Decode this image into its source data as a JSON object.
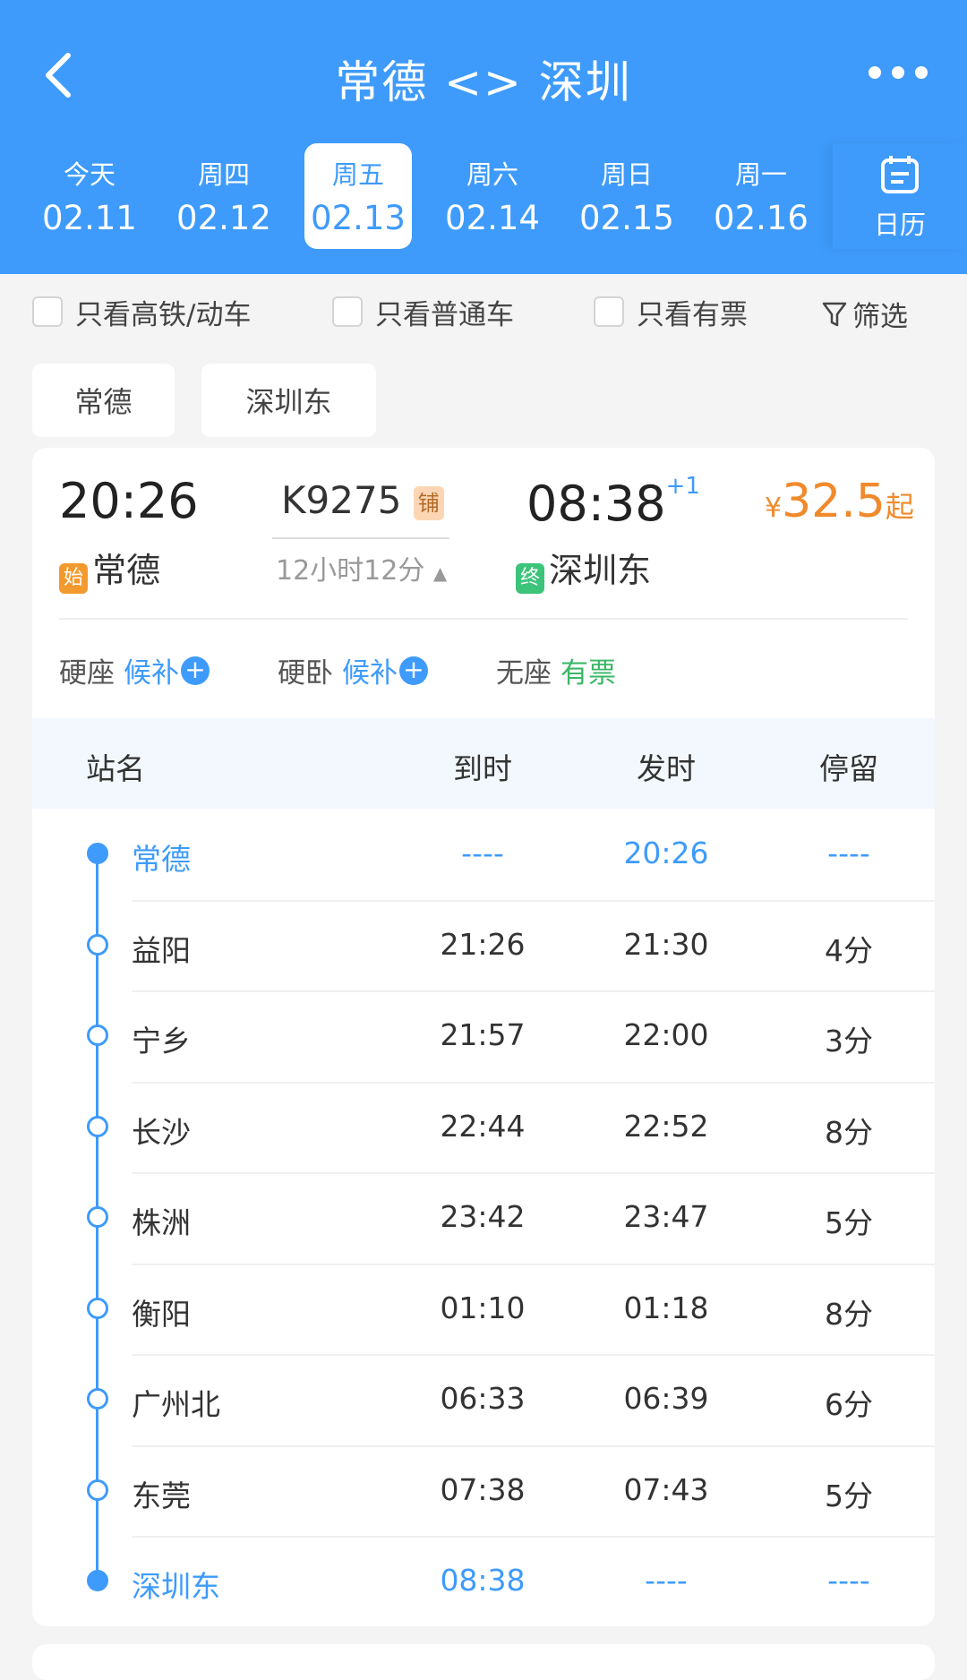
{
  "header": {
    "title": "常德 <> 深圳",
    "back_icon": "chevron-left-icon",
    "more_icon": "more-dots-icon"
  },
  "dates": [
    {
      "weekday": "今天",
      "date": "02.11",
      "selected": false
    },
    {
      "weekday": "周四",
      "date": "02.12",
      "selected": false
    },
    {
      "weekday": "周五",
      "date": "02.13",
      "selected": true
    },
    {
      "weekday": "周六",
      "date": "02.14",
      "selected": false
    },
    {
      "weekday": "周日",
      "date": "02.15",
      "selected": false
    },
    {
      "weekday": "周一",
      "date": "02.16",
      "selected": false
    }
  ],
  "calendar_label": "日历",
  "filters": {
    "high_speed": "只看高铁/动车",
    "normal": "只看普通车",
    "available": "只看有票",
    "filter": "筛选"
  },
  "station_chips": [
    "常德",
    "深圳东"
  ],
  "train": {
    "depart_time": "20:26",
    "number": "K9275",
    "type_badge": "铺",
    "arrive_time": "08:38",
    "day_offset": "+1",
    "price_symbol": "¥",
    "price": "32.5",
    "price_suffix": "起",
    "start_badge": "始",
    "from": "常德",
    "duration": "12小时12分",
    "end_badge": "终",
    "to": "深圳东",
    "seats": [
      {
        "name": "硬座",
        "status": "候补",
        "color": "#3e9bfb"
      },
      {
        "name": "硬卧",
        "status": "候补",
        "color": "#3e9bfb"
      },
      {
        "name": "无座",
        "status": "有票",
        "color": "#3bb766"
      }
    ]
  },
  "table": {
    "headers": [
      "站名",
      "到时",
      "发时",
      "停留"
    ],
    "rows": [
      [
        "常德",
        "----",
        "20:26",
        "----"
      ],
      [
        "益阳",
        "21:26",
        "21:30",
        "4分"
      ],
      [
        "宁乡",
        "21:57",
        "22:00",
        "3分"
      ],
      [
        "长沙",
        "22:44",
        "22:52",
        "8分"
      ],
      [
        "株洲",
        "23:42",
        "23:47",
        "5分"
      ],
      [
        "衡阳",
        "01:10",
        "01:18",
        "8分"
      ],
      [
        "广州北",
        "06:33",
        "06:39",
        "6分"
      ],
      [
        "东莞",
        "07:38",
        "07:43",
        "5分"
      ],
      [
        "深圳东",
        "08:38",
        "----",
        "----"
      ]
    ]
  },
  "colors": {
    "primary": "#3e9bfb",
    "price": "#f08a2c",
    "available": "#3bb766"
  }
}
